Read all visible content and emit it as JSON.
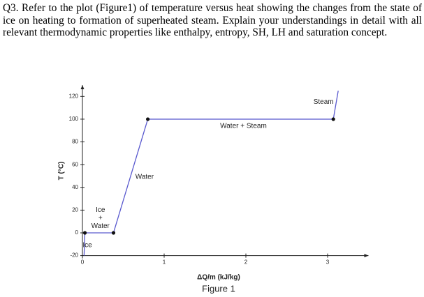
{
  "question": "Q3. Refer to the plot (Figure1) of temperature versus heat showing the changes from the state of ice on heating to formation of superheated steam. Explain your understandings in detail with all relevant thermodynamic properties like enthalpy, entropy, SH, LH and saturation concept.",
  "figure_caption": "Figure 1",
  "chart_data": {
    "type": "line",
    "x_label": "ΔQ/m (kJ/kg)",
    "y_label": "T (°C)",
    "x": [
      0.02,
      0.03,
      0.38,
      0.8,
      3.07,
      3.13
    ],
    "series": [
      {
        "color": "#5a5acf",
        "values": [
          -20,
          0,
          0,
          100,
          100,
          125
        ]
      }
    ],
    "xlim": [
      0,
      3.5
    ],
    "ylim": [
      -20,
      130
    ],
    "xticks": [
      0,
      1,
      2,
      3
    ],
    "yticks": [
      -20,
      0,
      20,
      40,
      60,
      80,
      100,
      120
    ],
    "annotations": [
      {
        "text": "Ice",
        "x": 0.06,
        "y": -11
      },
      {
        "text": "Ice",
        "x": 0.22,
        "y": 20
      },
      {
        "text": "+",
        "x": 0.22,
        "y": 13
      },
      {
        "text": "Water",
        "x": 0.22,
        "y": 6
      },
      {
        "text": "Water",
        "x": 0.76,
        "y": 49
      },
      {
        "text": "Water + Steam",
        "x": 1.97,
        "y": 94
      },
      {
        "text": "Steam",
        "x": 2.95,
        "y": 115
      }
    ]
  }
}
